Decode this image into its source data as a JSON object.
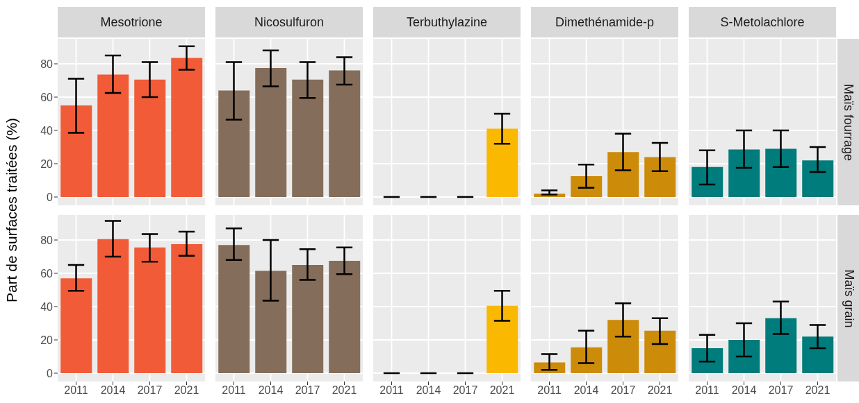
{
  "chart_data": [
    {
      "type": "bar",
      "title": "Mesotrione",
      "ylabel": "Part de surfaces traitées (%)",
      "categories": [
        "2011",
        "2014",
        "2017",
        "2021"
      ],
      "values": [
        55,
        73.5,
        70.5,
        83.5
      ],
      "errors": [
        [
          38.5,
          71
        ],
        [
          62.5,
          85
        ],
        [
          60,
          81
        ],
        [
          76.5,
          90.5
        ]
      ],
      "color": "#f15b37",
      "ylim": [
        -5,
        95
      ],
      "yticks": [
        0,
        20,
        40,
        60,
        80
      ],
      "grid": true,
      "tick_labels": "y"
    },
    {
      "type": "bar",
      "title": "Nicosulfuron",
      "categories": [
        "2011",
        "2014",
        "2017",
        "2021"
      ],
      "values": [
        64,
        77.5,
        70.5,
        76
      ],
      "errors": [
        [
          46.5,
          81
        ],
        [
          66.5,
          88
        ],
        [
          59.5,
          81
        ],
        [
          67.5,
          84
        ]
      ],
      "color": "#846d5a",
      "ylim": [
        -5,
        95
      ],
      "yticks": [
        0,
        20,
        40,
        60,
        80
      ],
      "grid": true,
      "tick_labels": false
    },
    {
      "type": "bar",
      "title": "Terbuthylazine",
      "categories": [
        "2011",
        "2014",
        "2017",
        "2021"
      ],
      "values": [
        0,
        0,
        0,
        41
      ],
      "errors": [
        [
          0,
          0
        ],
        [
          0,
          0
        ],
        [
          0,
          0
        ],
        [
          32,
          50
        ]
      ],
      "color": "#fbb800",
      "ylim": [
        -5,
        95
      ],
      "yticks": [
        0,
        20,
        40,
        60,
        80
      ],
      "grid": true,
      "tick_labels": false
    },
    {
      "type": "bar",
      "title": "Dimethénamide-p",
      "categories": [
        "2011",
        "2014",
        "2017",
        "2021"
      ],
      "values": [
        2,
        12.5,
        27,
        24
      ],
      "errors": [
        [
          1.5,
          4
        ],
        [
          5.5,
          19.5
        ],
        [
          16,
          38
        ],
        [
          15.5,
          32.5
        ]
      ],
      "color": "#cc8b08",
      "ylim": [
        -5,
        95
      ],
      "yticks": [
        0,
        20,
        40,
        60,
        80
      ],
      "grid": true,
      "tick_labels": false
    },
    {
      "type": "bar",
      "title": "S-Metolachlore",
      "y2label": "Maïs fourrage",
      "categories": [
        "2011",
        "2014",
        "2017",
        "2021"
      ],
      "values": [
        18,
        28.5,
        29,
        22
      ],
      "errors": [
        [
          7.5,
          28
        ],
        [
          17.5,
          40
        ],
        [
          18,
          40
        ],
        [
          15,
          30
        ]
      ],
      "color": "#007c7c",
      "ylim": [
        -5,
        95
      ],
      "yticks": [
        0,
        20,
        40,
        60,
        80
      ],
      "grid": true,
      "tick_labels": false
    },
    {
      "type": "bar",
      "categories": [
        "2011",
        "2014",
        "2017",
        "2021"
      ],
      "values": [
        57,
        80.5,
        75.5,
        77.5
      ],
      "errors": [
        [
          49.5,
          65
        ],
        [
          70,
          91.5
        ],
        [
          67,
          83.5
        ],
        [
          70.5,
          85
        ]
      ],
      "color": "#f15b37",
      "ylim": [
        -5,
        95
      ],
      "yticks": [
        0,
        20,
        40,
        60,
        80
      ],
      "grid": true
    },
    {
      "type": "bar",
      "categories": [
        "2011",
        "2014",
        "2017",
        "2021"
      ],
      "values": [
        77,
        61.5,
        65,
        67.5
      ],
      "errors": [
        [
          68,
          87
        ],
        [
          43.5,
          80
        ],
        [
          56,
          74.5
        ],
        [
          59.5,
          75.5
        ]
      ],
      "color": "#846d5a",
      "ylim": [
        -5,
        95
      ],
      "yticks": [
        0,
        20,
        40,
        60,
        80
      ],
      "grid": true,
      "tick_labels": "x"
    },
    {
      "type": "bar",
      "categories": [
        "2011",
        "2014",
        "2017",
        "2021"
      ],
      "values": [
        0,
        0,
        0,
        40.5
      ],
      "errors": [
        [
          0,
          0
        ],
        [
          0,
          0
        ],
        [
          0,
          0
        ],
        [
          31.5,
          49.5
        ]
      ],
      "color": "#fbb800",
      "ylim": [
        -5,
        95
      ],
      "yticks": [
        0,
        20,
        40,
        60,
        80
      ],
      "grid": true,
      "tick_labels": "x"
    },
    {
      "type": "bar",
      "categories": [
        "2011",
        "2014",
        "2017",
        "2021"
      ],
      "values": [
        6.5,
        15.5,
        32,
        25.5
      ],
      "errors": [
        [
          2,
          11.5
        ],
        [
          6,
          25.5
        ],
        [
          22,
          42
        ],
        [
          17.5,
          33
        ]
      ],
      "color": "#cc8b08",
      "ylim": [
        -5,
        95
      ],
      "yticks": [
        0,
        20,
        40,
        60,
        80
      ],
      "grid": true,
      "tick_labels": "x"
    },
    {
      "type": "bar",
      "y2label": "Maïs grain",
      "categories": [
        "2011",
        "2014",
        "2017",
        "2021"
      ],
      "values": [
        15,
        20,
        33,
        22
      ],
      "errors": [
        [
          7,
          23
        ],
        [
          10,
          30
        ],
        [
          23.5,
          43
        ],
        [
          15,
          29
        ]
      ],
      "color": "#007c7c",
      "ylim": [
        -5,
        95
      ],
      "yticks": [
        0,
        20,
        40,
        60,
        80
      ],
      "grid": true,
      "tick_labels": "x"
    }
  ]
}
